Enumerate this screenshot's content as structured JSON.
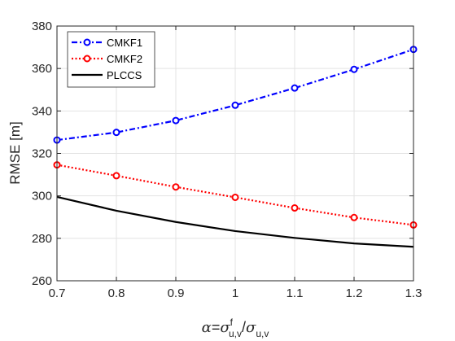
{
  "chart_data": {
    "type": "line",
    "x": [
      0.7,
      0.8,
      0.9,
      1.0,
      1.1,
      1.2,
      1.3
    ],
    "xlim": [
      0.7,
      1.3
    ],
    "ylim": [
      260,
      380
    ],
    "xticks": [
      "0.7",
      "0.8",
      "0.9",
      "1",
      "1.1",
      "1.2",
      "1.3"
    ],
    "yticks": [
      "260",
      "280",
      "300",
      "320",
      "340",
      "360",
      "380"
    ],
    "xtick_values": [
      0.7,
      0.8,
      0.9,
      1.0,
      1.1,
      1.2,
      1.3
    ],
    "ytick_values": [
      260,
      280,
      300,
      320,
      340,
      360,
      380
    ],
    "ylabel": "RMSE [m]",
    "xlabel": {
      "alpha": "α",
      "eq": "=",
      "sigma": "σ",
      "sup_f": "f",
      "sub_uv": "u,v",
      "slash": "/",
      "sigma2": "σ",
      "sub_uv2": "u,v"
    },
    "grid": true,
    "legend_position": "top-left",
    "series": [
      {
        "name": "CMKF1",
        "color": "#0000ff",
        "dash": "dash-dot",
        "marker": "circle",
        "values": [
          326.3,
          329.9,
          335.5,
          342.7,
          350.8,
          359.6,
          369.0
        ]
      },
      {
        "name": "CMKF2",
        "color": "#ff0000",
        "dash": "dotted",
        "marker": "circle",
        "values": [
          314.6,
          309.5,
          304.2,
          299.3,
          294.3,
          289.8,
          286.3
        ]
      },
      {
        "name": "PLCCS",
        "color": "#000000",
        "dash": "solid",
        "marker": "none",
        "values": [
          299.5,
          293.0,
          287.7,
          283.4,
          280.2,
          277.6,
          276.0
        ]
      }
    ]
  }
}
